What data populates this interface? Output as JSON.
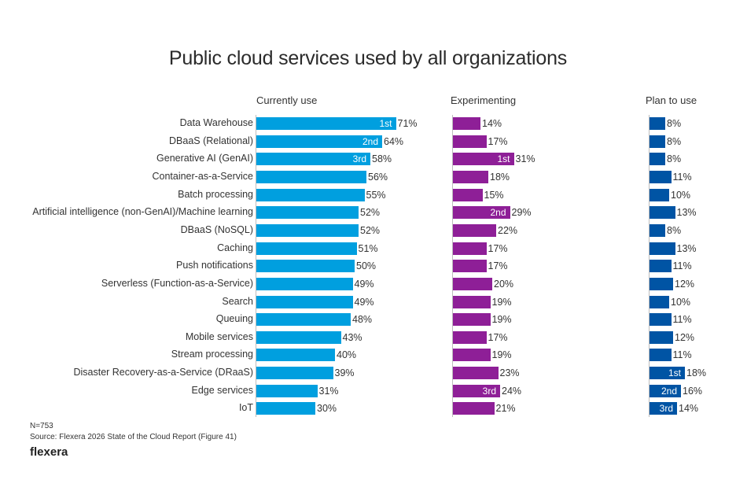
{
  "chart_data": {
    "type": "bar",
    "orientation": "horizontal",
    "title": "Public cloud services used by all organizations",
    "categories": [
      "Data Warehouse",
      "DBaaS (Relational)",
      "Generative AI (GenAI)",
      "Container-as-a-Service",
      "Batch processing",
      "Artificial intelligence (non-GenAI)/Machine learning",
      "DBaaS (NoSQL)",
      "Caching",
      "Push notifications",
      "Serverless (Function-as-a-Service)",
      "Search",
      "Queuing",
      "Mobile services",
      "Stream processing",
      "Disaster Recovery-as-a-Service (DRaaS)",
      "Edge services",
      "IoT"
    ],
    "series": [
      {
        "name": "Currently use",
        "color": "#009fdf",
        "values": [
          71,
          64,
          58,
          56,
          55,
          52,
          52,
          51,
          50,
          49,
          49,
          48,
          43,
          40,
          39,
          31,
          30
        ],
        "ranks": [
          "1st",
          "2nd",
          "3rd",
          "",
          "",
          "",
          "",
          "",
          "",
          "",
          "",
          "",
          "",
          "",
          "",
          "",
          ""
        ]
      },
      {
        "name": "Experimenting",
        "color": "#8e1f97",
        "values": [
          14,
          17,
          31,
          18,
          15,
          29,
          22,
          17,
          17,
          20,
          19,
          19,
          17,
          19,
          23,
          24,
          21
        ],
        "ranks": [
          "",
          "",
          "1st",
          "",
          "",
          "2nd",
          "",
          "",
          "",
          "",
          "",
          "",
          "",
          "",
          "",
          "3rd",
          ""
        ]
      },
      {
        "name": "Plan to use",
        "color": "#0054a4",
        "values": [
          8,
          8,
          8,
          11,
          10,
          13,
          8,
          13,
          11,
          12,
          10,
          11,
          12,
          11,
          18,
          16,
          14
        ],
        "ranks": [
          "",
          "",
          "",
          "",
          "",
          "",
          "",
          "",
          "",
          "",
          "",
          "",
          "",
          "",
          "1st",
          "2nd",
          "3rd"
        ]
      }
    ],
    "value_suffix": "%",
    "xlim": [
      0,
      100
    ],
    "grid": false,
    "legend": "none"
  },
  "footnote": {
    "n": "N=753",
    "source": "Source: Flexera 2026 State of the Cloud Report (Figure 41)"
  },
  "brand": "flexera"
}
